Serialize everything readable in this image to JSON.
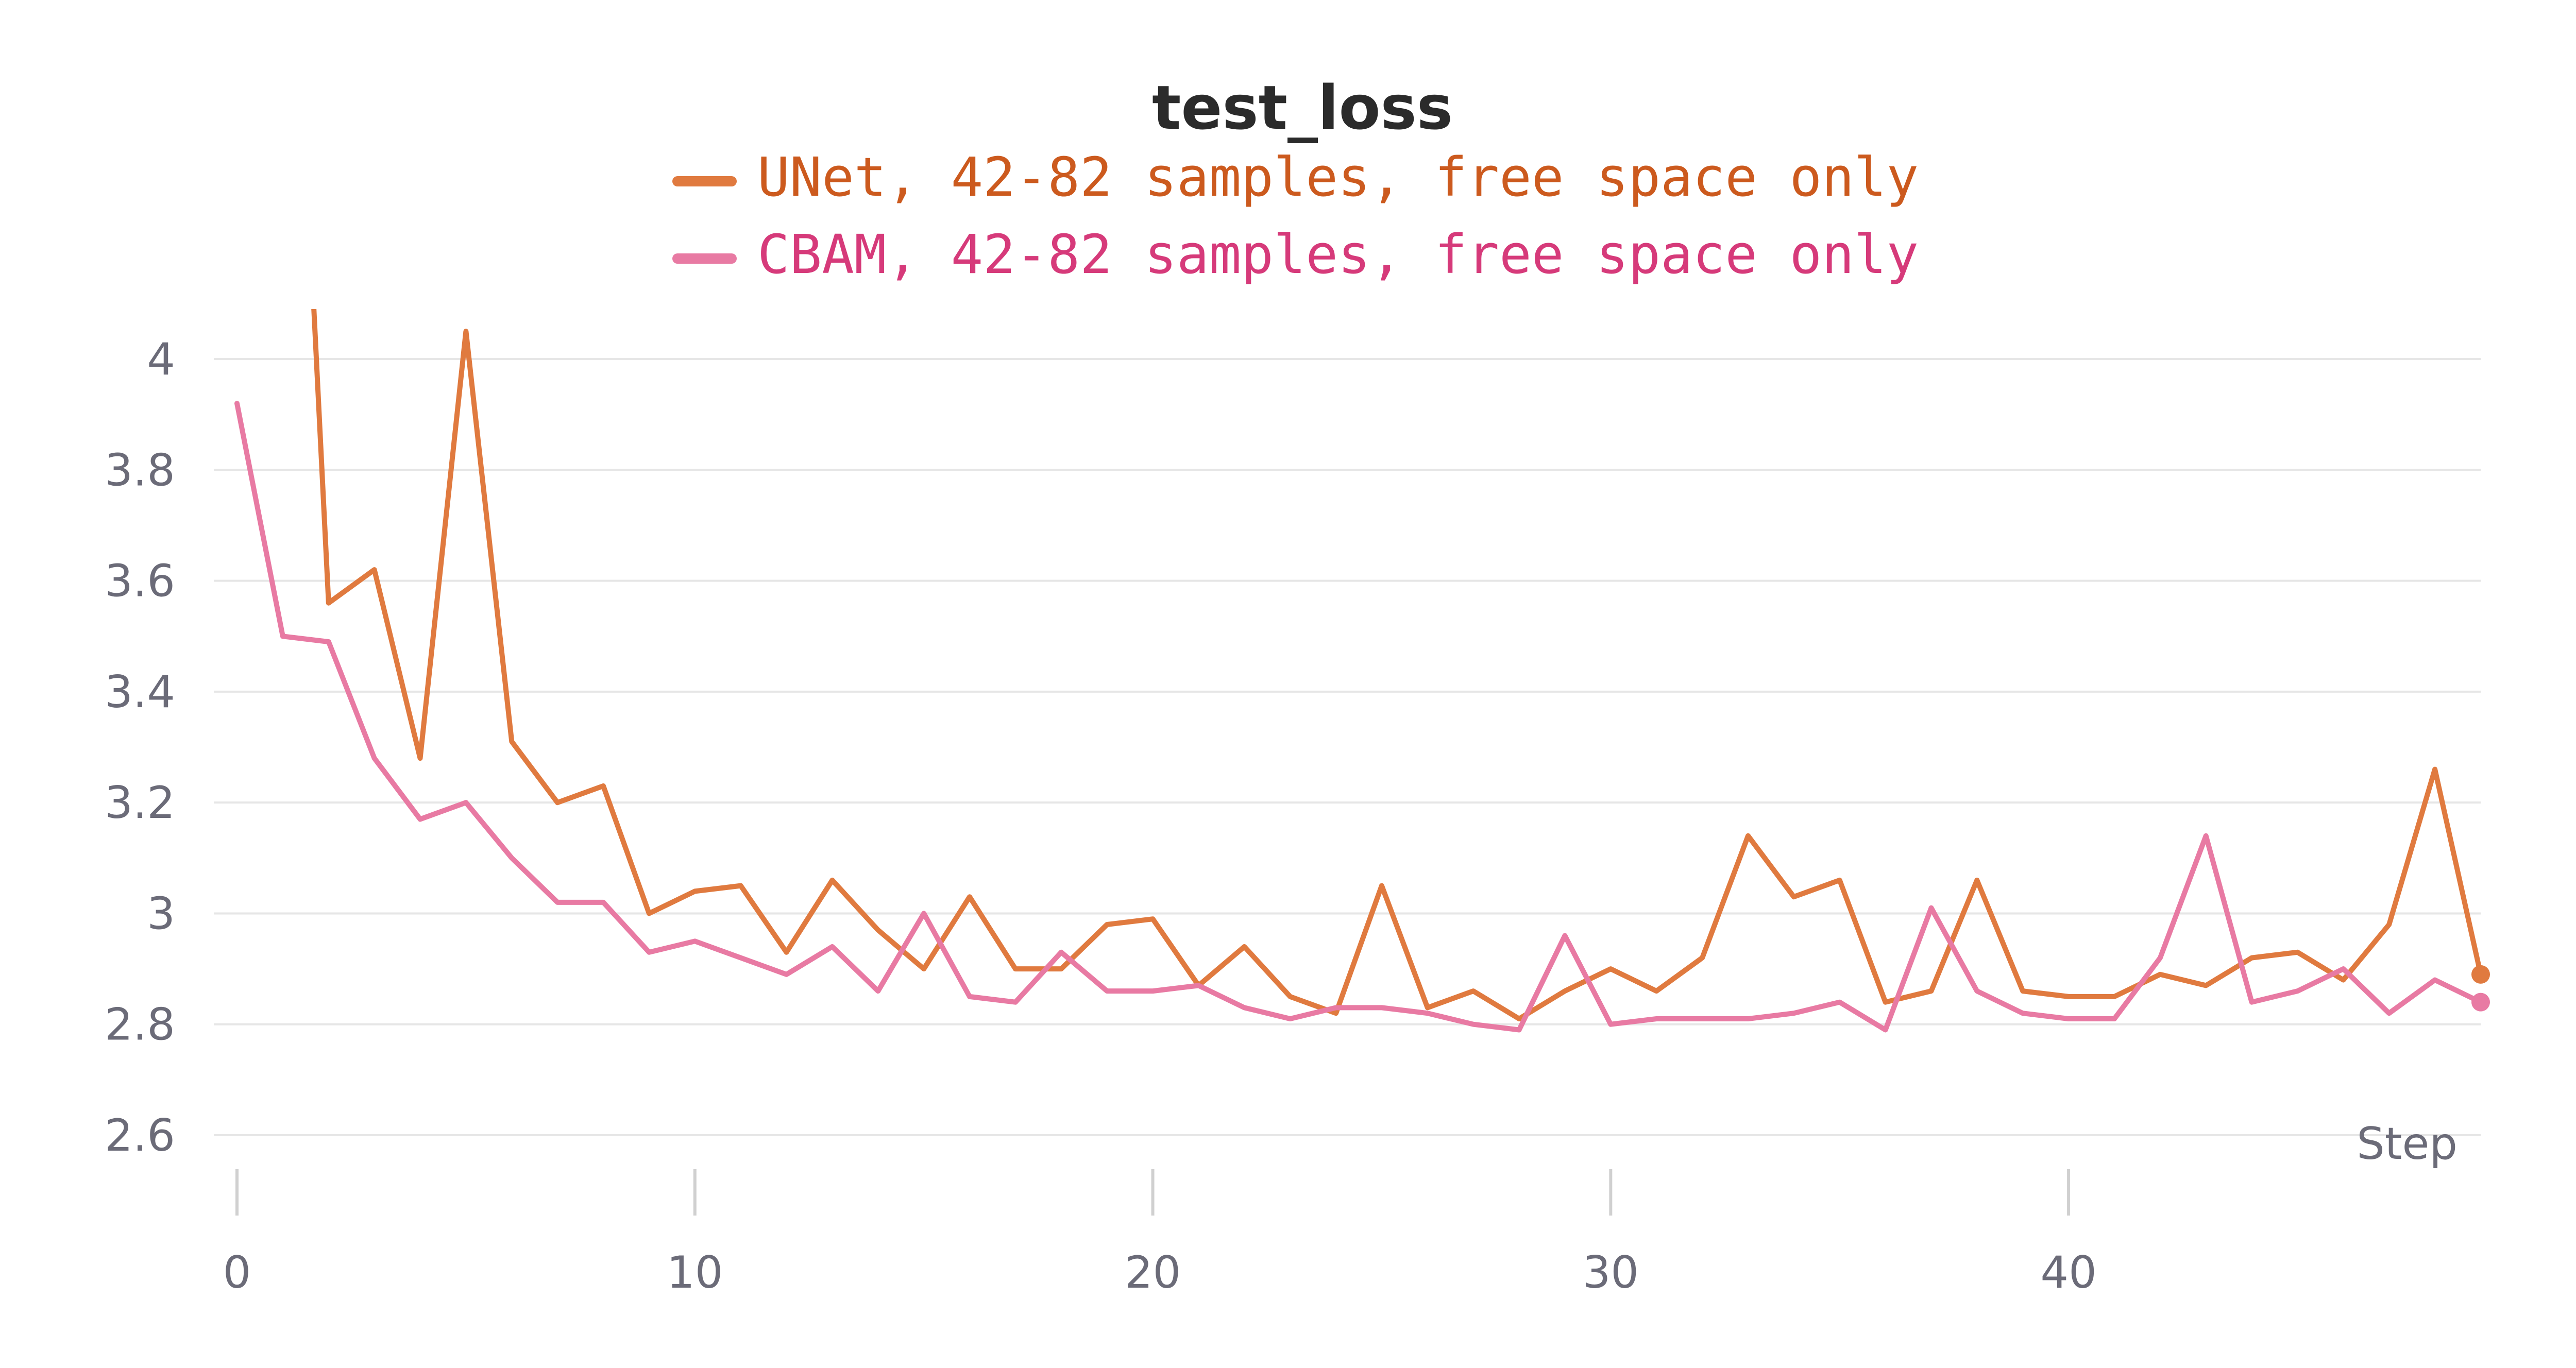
{
  "chart_data": {
    "type": "line",
    "title": "test_loss",
    "xlabel": "Step",
    "ylabel": "",
    "xlim": [
      0,
      49
    ],
    "ylim": [
      2.6,
      4.04
    ],
    "xticks": [
      0,
      10,
      20,
      30,
      40
    ],
    "yticks": [
      2.6,
      2.8,
      3,
      3.2,
      3.4,
      3.6,
      3.8,
      4
    ],
    "ytick_labels": [
      "2.6",
      "2.8",
      "3",
      "3.2",
      "3.4",
      "3.6",
      "3.8",
      "4"
    ],
    "grid": true,
    "legend_position": "top",
    "series": [
      {
        "name": "UNet, 42-82 samples, free space only",
        "color": "#e07a3f",
        "legend_text_color": "#cc5a1e",
        "x": [
          0,
          1,
          1.4,
          2,
          3,
          4,
          5,
          6,
          7,
          8,
          9,
          10,
          11,
          12,
          13,
          14,
          15,
          16,
          17,
          18,
          19,
          20,
          21,
          22,
          23,
          24,
          25,
          26,
          27,
          28,
          29,
          30,
          31,
          32,
          33,
          34,
          35,
          36,
          37,
          38,
          39,
          40,
          41,
          42,
          43,
          44,
          45,
          46,
          47,
          48,
          49
        ],
        "y": [
          null,
          null,
          4.55,
          3.56,
          3.62,
          3.28,
          4.05,
          3.31,
          3.2,
          3.23,
          3.0,
          3.04,
          3.05,
          2.93,
          3.06,
          2.97,
          2.9,
          3.03,
          2.9,
          2.9,
          2.98,
          2.99,
          2.87,
          2.94,
          2.85,
          2.82,
          3.05,
          2.83,
          2.86,
          2.81,
          2.86,
          2.9,
          2.86,
          2.92,
          3.14,
          3.03,
          3.06,
          2.84,
          2.86,
          3.06,
          2.86,
          2.85,
          2.85,
          2.89,
          2.87,
          2.92,
          2.93,
          2.88,
          2.98,
          3.26,
          2.89
        ]
      },
      {
        "name": "CBAM, 42-82 samples, free space only",
        "color": "#e87aa3",
        "legend_text_color": "#d63a7a",
        "x": [
          0,
          1,
          2,
          3,
          4,
          5,
          6,
          7,
          8,
          9,
          10,
          11,
          12,
          13,
          14,
          15,
          16,
          17,
          18,
          19,
          20,
          21,
          22,
          23,
          24,
          25,
          26,
          27,
          28,
          29,
          30,
          31,
          32,
          33,
          34,
          35,
          36,
          37,
          38,
          39,
          40,
          41,
          42,
          43,
          44,
          45,
          46,
          47,
          48,
          49
        ],
        "y": [
          3.92,
          3.5,
          3.49,
          3.28,
          3.17,
          3.2,
          3.1,
          3.02,
          3.02,
          2.93,
          2.95,
          2.92,
          2.89,
          2.94,
          2.86,
          3.0,
          2.85,
          2.84,
          2.93,
          2.86,
          2.86,
          2.87,
          2.83,
          2.81,
          2.83,
          2.83,
          2.82,
          2.8,
          2.79,
          2.96,
          2.8,
          2.81,
          2.81,
          2.81,
          2.82,
          2.84,
          2.79,
          3.01,
          2.86,
          2.82,
          2.81,
          2.81,
          2.92,
          3.14,
          2.84,
          2.86,
          2.9,
          2.82,
          2.88,
          2.84
        ]
      }
    ]
  }
}
